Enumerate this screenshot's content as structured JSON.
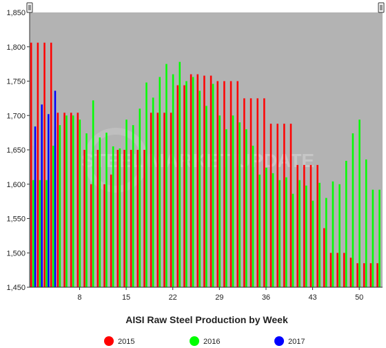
{
  "colors": {
    "2015": "#ff0000",
    "2016": "#00ff00",
    "2017": "#0000ff",
    "plot_background": "#b3b3b3"
  },
  "watermark": "STEEL MARKET UPDATE",
  "chart_data": {
    "type": "bar",
    "title": "",
    "xlabel": "AISI Raw Steel Production by Week",
    "ylabel": "",
    "ylim": [
      1450,
      1850
    ],
    "yticks": [
      1450,
      1500,
      1550,
      1600,
      1650,
      1700,
      1750,
      1800,
      1850
    ],
    "ytick_labels": [
      "1,450",
      "1,500",
      "1,550",
      "1,600",
      "1,650",
      "1,700",
      "1,750",
      "1,800",
      "1,850"
    ],
    "xticks": [
      8,
      15,
      22,
      29,
      36,
      43,
      50
    ],
    "xlim": [
      0.5,
      53.5
    ],
    "grid": false,
    "legend_position": "bottom",
    "series": [
      {
        "name": "2015",
        "x": [
          1,
          2,
          3,
          4,
          5,
          6,
          7,
          8,
          9,
          10,
          11,
          12,
          13,
          14,
          15,
          16,
          17,
          18,
          19,
          20,
          21,
          22,
          23,
          24,
          25,
          26,
          27,
          28,
          29,
          30,
          31,
          32,
          33,
          34,
          35,
          36,
          37,
          38,
          39,
          40,
          41,
          42,
          43,
          44,
          45,
          46,
          47,
          48,
          49,
          50,
          51,
          52,
          53
        ],
        "values": [
          1806,
          1806,
          1806,
          1806,
          1704,
          1704,
          1704,
          1704,
          1650,
          1600,
          1650,
          1600,
          1614,
          1650,
          1650,
          1650,
          1650,
          1650,
          1704,
          1704,
          1704,
          1704,
          1744,
          1744,
          1760,
          1760,
          1758,
          1758,
          1750,
          1750,
          1750,
          1750,
          1725,
          1725,
          1725,
          1725,
          1688,
          1688,
          1688,
          1688,
          1628,
          1628,
          1628,
          1628,
          1536,
          1500,
          1500,
          1500,
          1493,
          1485,
          1485,
          1485,
          1485
        ]
      },
      {
        "name": "2016",
        "x": [
          1,
          2,
          3,
          4,
          5,
          6,
          7,
          8,
          9,
          10,
          11,
          12,
          13,
          14,
          15,
          16,
          17,
          18,
          19,
          20,
          21,
          22,
          23,
          24,
          25,
          26,
          27,
          28,
          29,
          30,
          31,
          32,
          33,
          34,
          35,
          36,
          37,
          38,
          39,
          40,
          41,
          42,
          43,
          44,
          45,
          46,
          47,
          48,
          49,
          50,
          51,
          52,
          53
        ],
        "values": [
          1606,
          1606,
          1606,
          1656,
          1686,
          1700,
          1700,
          1694,
          1674,
          1722,
          1668,
          1675,
          1655,
          1652,
          1694,
          1686,
          1710,
          1748,
          1726,
          1756,
          1775,
          1760,
          1778,
          1750,
          1756,
          1736,
          1714,
          1746,
          1700,
          1680,
          1700,
          1690,
          1680,
          1656,
          1614,
          1624,
          1616,
          1606,
          1610,
          1586,
          1606,
          1598,
          1576,
          1602,
          1580,
          1604,
          1600,
          1634,
          1674,
          1694,
          1636,
          1592,
          1592
        ]
      },
      {
        "name": "2017",
        "x": [
          1,
          2,
          3,
          4
        ],
        "values": [
          1684,
          1716,
          1702,
          1736
        ]
      }
    ]
  }
}
